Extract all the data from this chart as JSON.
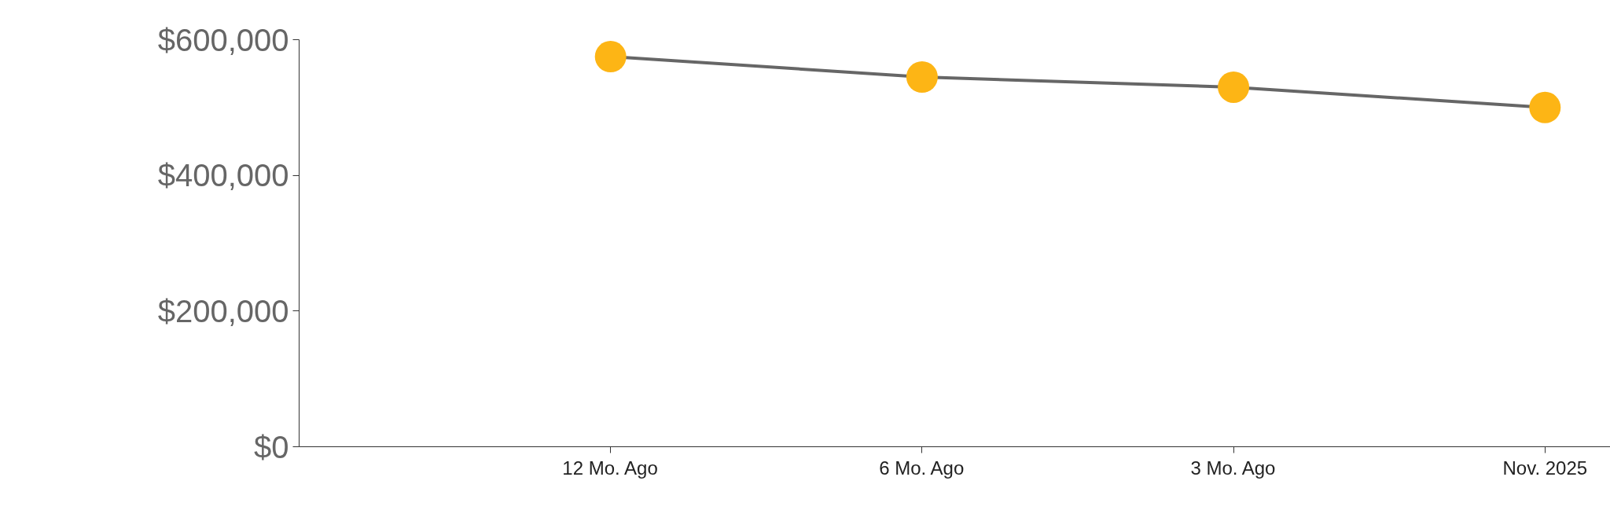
{
  "chart_data": {
    "type": "line",
    "categories": [
      null,
      "12 Mo. Ago",
      "6 Mo. Ago",
      "3 Mo. Ago",
      "Nov. 2025"
    ],
    "series": [
      {
        "color": "#666666",
        "colors": [
          null,
          "#fdb515",
          "#fdb515",
          "#fdb515",
          "#fdb515"
        ],
        "values": [
          null,
          575000,
          545000,
          530000,
          500000
        ]
      }
    ],
    "marker": "circle",
    "ylim": [
      0,
      600000
    ],
    "yticks": [
      {
        "value": 0,
        "label": "$0"
      },
      {
        "value": 200000,
        "label": "$200,000"
      },
      {
        "value": 400000,
        "label": "$400,000"
      },
      {
        "value": 600000,
        "label": "$600,000"
      }
    ],
    "grid": false
  }
}
